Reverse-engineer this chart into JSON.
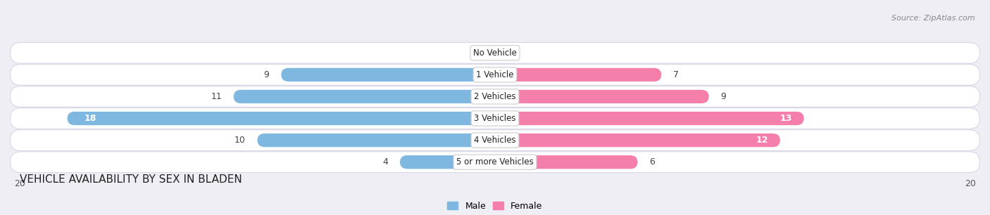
{
  "title": "VEHICLE AVAILABILITY BY SEX IN BLADEN",
  "source": "Source: ZipAtlas.com",
  "categories": [
    "No Vehicle",
    "1 Vehicle",
    "2 Vehicles",
    "3 Vehicles",
    "4 Vehicles",
    "5 or more Vehicles"
  ],
  "male_values": [
    0,
    9,
    11,
    18,
    10,
    4
  ],
  "female_values": [
    0,
    7,
    9,
    13,
    12,
    6
  ],
  "male_color": "#7eb8e0",
  "female_color": "#f47faa",
  "male_label": "Male",
  "female_label": "Female",
  "xlim": 20,
  "bar_height": 0.62,
  "background_color": "#eeeef4",
  "row_bg_color": "#f5f5fa",
  "title_fontsize": 11,
  "label_fontsize": 9,
  "tick_fontsize": 9,
  "source_fontsize": 8,
  "inside_label_threshold_male": 15,
  "inside_label_threshold_female": 11
}
